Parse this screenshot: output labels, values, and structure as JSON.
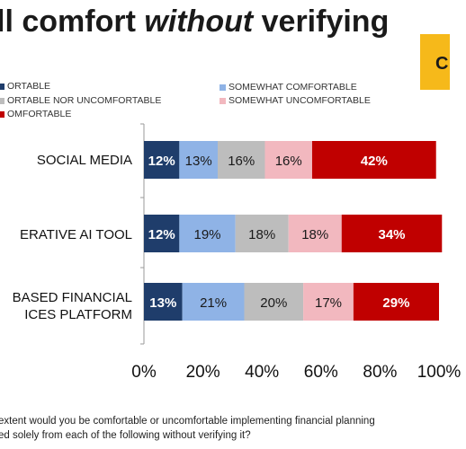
{
  "header": {
    "title_pre": "ll comfort ",
    "title_em": "without",
    "title_post": " verifying",
    "accent_glyph": "C"
  },
  "legend": [
    {
      "label": "ORTABLE",
      "color": "#1f3d6b"
    },
    {
      "label": "SOMEWHAT COMFORTABLE",
      "color": "#8fb3e6"
    },
    {
      "label": "ORTABLE NOR UNCOMFORTABLE",
      "color": "#bdbdbd"
    },
    {
      "label": "SOMEWHAT UNCOMFORTABLE",
      "color": "#f2b8bf"
    },
    {
      "label": "OMFORTABLE",
      "color": "#c00000"
    }
  ],
  "category_lines": [
    [
      "SOCIAL MEDIA"
    ],
    [
      "ERATIVE AI TOOL"
    ],
    [
      "BASED FINANCIAL",
      "ICES PLATFORM"
    ]
  ],
  "question": {
    "line1": "extent would you be comfortable or uncomfortable implementing financial planning",
    "line2": "ed solely from each of the following without verifying it?"
  },
  "chart_data": {
    "type": "bar",
    "orientation": "horizontal",
    "stacked": true,
    "title": "",
    "categories": [
      "SOCIAL MEDIA",
      "ERATIVE AI TOOL",
      "BASED FINANCIAL ICES PLATFORM"
    ],
    "series": [
      {
        "name": "ORTABLE",
        "values": [
          12,
          12,
          13
        ],
        "color": "#1f3d6b"
      },
      {
        "name": "SOMEWHAT COMFORTABLE",
        "values": [
          13,
          19,
          21
        ],
        "color": "#8fb3e6"
      },
      {
        "name": "ORTABLE NOR UNCOMFORTABLE",
        "values": [
          16,
          18,
          20
        ],
        "color": "#bdbdbd"
      },
      {
        "name": "SOMEWHAT UNCOMFORTABLE",
        "values": [
          16,
          18,
          17
        ],
        "color": "#f2b8bf"
      },
      {
        "name": "OMFORTABLE",
        "values": [
          42,
          34,
          29
        ],
        "color": "#c00000"
      }
    ],
    "data_labels": [
      [
        "12%",
        "13%",
        "16%",
        "16%",
        "42%"
      ],
      [
        "12%",
        "19%",
        "18%",
        "18%",
        "34%"
      ],
      [
        "13%",
        "21%",
        "20%",
        "17%",
        "29%"
      ]
    ],
    "xlim": [
      0,
      100
    ],
    "xticks": [
      "0%",
      "20%",
      "40%",
      "60%",
      "80%",
      "100%"
    ],
    "grid": false,
    "legend_position": "top"
  }
}
